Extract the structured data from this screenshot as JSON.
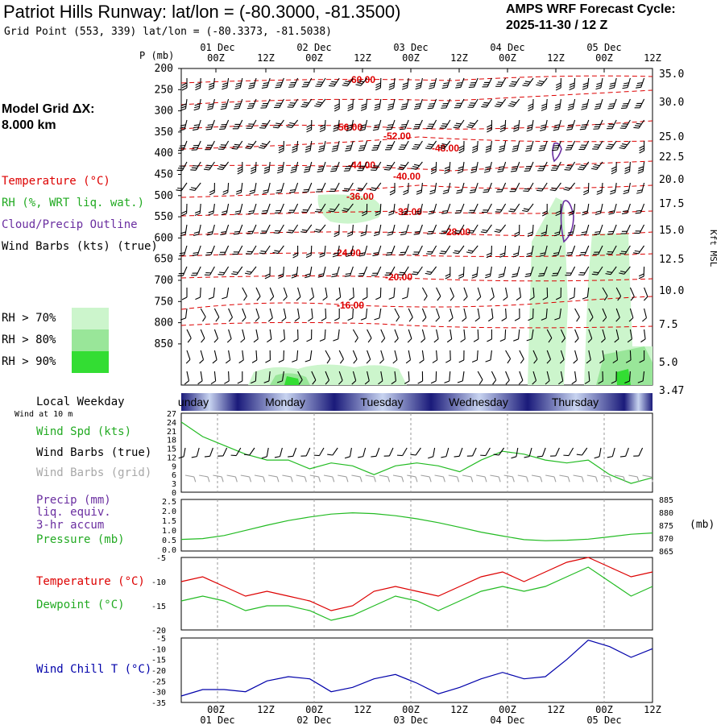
{
  "header": {
    "title": "Patriot Hills Runway:  lat/lon = (-80.3000, -81.3500)",
    "subtitle": "Grid Point (553, 339) lat/lon = (-80.3373, -81.5038)",
    "cycle_line1": "AMPS WRF Forecast Cycle:",
    "cycle_line2": "2025-11-30 / 12  Z",
    "grid_label": "Model Grid ΔX:",
    "grid_value": " 8.000 km"
  },
  "legend": {
    "temperature": "Temperature (°C)",
    "rh": "RH (%, WRT liq. wat.)",
    "cloud": "Cloud/Precip Outline",
    "wind_barbs": "Wind Barbs (kts) (true)",
    "rh70": "RH > 70%",
    "rh80": "RH > 80%",
    "rh90": "RH > 90%",
    "local_weekday": "Local Weekday",
    "wind_10m": "Wind at 10 m",
    "wind_spd": "Wind Spd (kts)",
    "wind_barbs_true": "Wind Barbs (true)",
    "wind_barbs_grid": "Wind Barbs (grid)",
    "precip": "Precip (mm)",
    "liq_equiv": "liq. equiv.",
    "accum": "3-hr accum",
    "pressure": "Pressure (mb)",
    "temp2": "Temperature (°C)",
    "dewpoint": "Dewpoint (°C)",
    "windchill": "Wind Chill T (°C)"
  },
  "colors": {
    "temperature": "#dd0000",
    "rh": "#22bb22",
    "cloud": "#6a2ea0",
    "wind": "#000000",
    "wind_grid": "#a0a0a0",
    "wind_chill": "#0000aa",
    "rh70": "#ccf5cc",
    "rh80": "#99e699",
    "rh90": "#33dd33"
  },
  "chart_data": [
    {
      "type": "time-height cross-section",
      "time_axis_top": [
        "00Z",
        "12Z",
        "00Z",
        "12Z",
        "00Z",
        "12Z",
        "00Z",
        "12Z",
        "00Z",
        "12Z"
      ],
      "date_labels": [
        "01 Dec",
        "02 Dec",
        "03 Dec",
        "04 Dec",
        "05 Dec"
      ],
      "left_axis_label": "P (mb)",
      "pressure_levels": [
        200,
        250,
        300,
        350,
        400,
        450,
        500,
        550,
        600,
        650,
        700,
        750,
        800,
        850
      ],
      "right_axis_label": "Kft MSL",
      "height_kft": [
        "35.0",
        "30.0",
        "25.0",
        "22.5",
        "20.0",
        "17.5",
        "15.0",
        "12.5",
        "10.0",
        "7.5",
        "5.0",
        "3.47"
      ],
      "temperature_labels": [
        "-60.00",
        "-56.00",
        "-52.00",
        "-48.00",
        "-44.00",
        "-40.00",
        "-36.00",
        "-32.00",
        "-28.00",
        "-24.00",
        "-20.00",
        "-16.00"
      ]
    },
    {
      "type": "line",
      "title": "Wind Spd (kts)",
      "weekdays": [
        "unday",
        "Monday",
        "Tuesday",
        "Wednesday",
        "Thursday"
      ],
      "y_ticks": [
        "27",
        "24",
        "21",
        "18",
        "15",
        "12",
        "9",
        "6",
        "3",
        "0"
      ],
      "ylim": [
        0,
        27
      ],
      "x": [
        0,
        6,
        12,
        18,
        24,
        30,
        36,
        42,
        48,
        54,
        60,
        66,
        72,
        78,
        84,
        90,
        96,
        102,
        108,
        114,
        120,
        126,
        132
      ],
      "values": [
        24,
        19,
        16,
        13,
        11,
        11,
        8,
        10,
        9,
        6,
        9,
        10,
        9,
        7,
        11,
        14,
        13,
        11,
        10,
        11,
        6,
        3,
        5
      ]
    },
    {
      "type": "line",
      "title": "Pressure (mb)",
      "left_ticks": [
        "2.5",
        "2.0",
        "1.5",
        "1.0",
        "0.5",
        "0.0"
      ],
      "right_ticks": [
        "885",
        "880",
        "875",
        "870",
        "865"
      ],
      "right_unit": "(mb)",
      "ylim": [
        865,
        885
      ],
      "x": [
        0,
        6,
        12,
        18,
        24,
        30,
        36,
        42,
        48,
        54,
        60,
        66,
        72,
        78,
        84,
        90,
        96,
        102,
        108,
        114,
        120,
        126,
        132
      ],
      "values": [
        869.5,
        869.8,
        871.0,
        873.0,
        875.0,
        876.8,
        878.2,
        879.3,
        879.8,
        879.5,
        878.7,
        877.5,
        876.0,
        874.2,
        872.3,
        870.8,
        869.4,
        869.0,
        869.2,
        869.6,
        870.5,
        871.5,
        872.0
      ]
    },
    {
      "type": "line",
      "title": "Temperature / Dewpoint",
      "y_ticks": [
        "-5",
        "-10",
        "-15",
        "-20"
      ],
      "ylim": [
        -20,
        -5
      ],
      "x": [
        0,
        6,
        12,
        18,
        24,
        30,
        36,
        42,
        48,
        54,
        60,
        66,
        72,
        78,
        84,
        90,
        96,
        102,
        108,
        114,
        120,
        126,
        132
      ],
      "series": [
        {
          "name": "Temperature (°C)",
          "values": [
            -10,
            -9,
            -11,
            -13,
            -12,
            -13,
            -14,
            -16,
            -15,
            -12,
            -11,
            -12,
            -13,
            -11,
            -9,
            -8,
            -10,
            -8,
            -6,
            -5,
            -7,
            -9,
            -8
          ]
        },
        {
          "name": "Dewpoint (°C)",
          "values": [
            -14,
            -13,
            -14,
            -16,
            -15,
            -15,
            -16,
            -18,
            -17,
            -15,
            -13,
            -14,
            -16,
            -14,
            -12,
            -11,
            -12,
            -11,
            -9,
            -7,
            -10,
            -13,
            -11
          ]
        }
      ]
    },
    {
      "type": "line",
      "title": "Wind Chill T (°C)",
      "y_ticks": [
        "-5",
        "-10",
        "-15",
        "-20",
        "-25",
        "-30",
        "-35"
      ],
      "ylim": [
        -35,
        -5
      ],
      "x": [
        0,
        6,
        12,
        18,
        24,
        30,
        36,
        42,
        48,
        54,
        60,
        66,
        72,
        78,
        84,
        90,
        96,
        102,
        108,
        114,
        120,
        126,
        132
      ],
      "values": [
        -32,
        -29,
        -29,
        -30,
        -25,
        -23,
        -24,
        -30,
        -28,
        -24,
        -22,
        -26,
        -31,
        -28,
        -24,
        -21,
        -24,
        -23,
        -15,
        -6,
        -9,
        -14,
        -10
      ]
    }
  ]
}
